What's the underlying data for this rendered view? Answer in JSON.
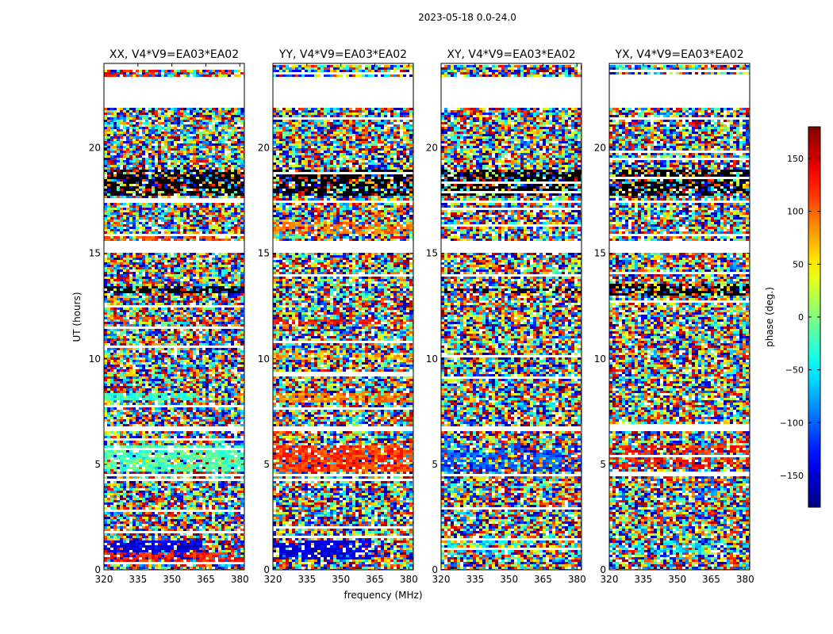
{
  "chart_data": {
    "type": "heatmap",
    "suptitle": "2023-05-18 0.0-24.0",
    "xlabel": "frequency (MHz)",
    "ylabel": "UT (hours)",
    "xlim": [
      320,
      382
    ],
    "ylim": [
      0,
      24
    ],
    "x_ticks": [
      320,
      335,
      350,
      365,
      380
    ],
    "y_ticks": [
      0,
      5,
      10,
      15,
      20
    ],
    "panels": [
      {
        "title": "XX, V4*V9=EA03*EA02",
        "corr": "XX"
      },
      {
        "title": "YY, V4*V9=EA03*EA02",
        "corr": "YY"
      },
      {
        "title": "XY, V4*V9=EA03*EA02",
        "corr": "XY"
      },
      {
        "title": "YX, V4*V9=EA03*EA02",
        "corr": "YX"
      }
    ],
    "blank_ut_ranges": [
      [
        21.9,
        23.4
      ],
      [
        17.4,
        17.6
      ],
      [
        15.05,
        15.6
      ],
      [
        6.6,
        6.8
      ],
      [
        4.5,
        4.6
      ]
    ],
    "colorbar": {
      "label": "phase (deg.)",
      "min": -180,
      "max": 180,
      "ticks": [
        150,
        100,
        50,
        0,
        -50,
        -100,
        -150
      ],
      "tick_labels": [
        "150",
        "100",
        "50",
        "0",
        "−50",
        "−100",
        "−150"
      ],
      "colormap": "jet"
    }
  }
}
